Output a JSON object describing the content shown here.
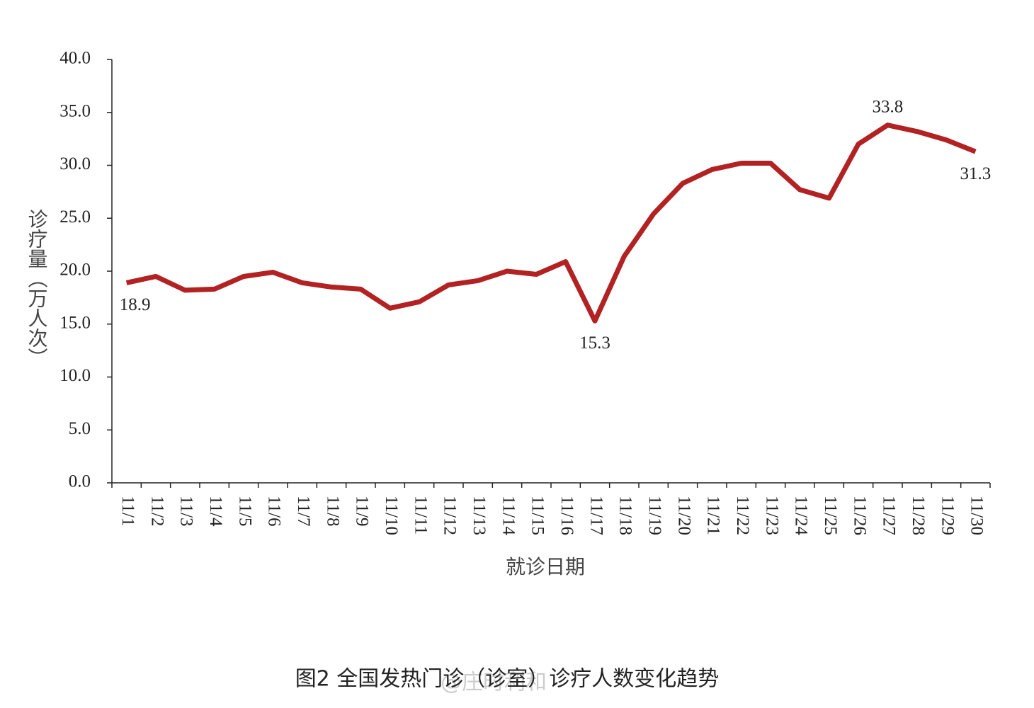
{
  "chart_data": {
    "type": "line",
    "caption": "图2  全国发热门诊（诊室）诊疗人数变化趋势",
    "watermark": "@庄时利和",
    "xlabel": "就诊日期",
    "ylabel": "诊疗量（万人次）",
    "categories": [
      "11/1",
      "11/2",
      "11/3",
      "11/4",
      "11/5",
      "11/6",
      "11/7",
      "11/8",
      "11/9",
      "11/10",
      "11/11",
      "11/12",
      "11/13",
      "11/14",
      "11/15",
      "11/16",
      "11/17",
      "11/18",
      "11/19",
      "11/20",
      "11/21",
      "11/22",
      "11/23",
      "11/24",
      "11/25",
      "11/26",
      "11/27",
      "11/28",
      "11/29",
      "11/30"
    ],
    "series": [
      {
        "name": "诊疗量",
        "color": "#b22222",
        "values": [
          18.9,
          19.5,
          18.2,
          18.3,
          19.5,
          19.9,
          18.9,
          18.5,
          18.3,
          16.5,
          17.1,
          18.7,
          19.1,
          20.0,
          19.7,
          20.9,
          15.3,
          21.4,
          25.4,
          28.3,
          29.6,
          30.2,
          30.2,
          27.7,
          26.9,
          32.0,
          33.8,
          33.2,
          32.4,
          31.3
        ],
        "value_labels": [
          "18.9",
          null,
          null,
          null,
          null,
          null,
          null,
          null,
          null,
          null,
          null,
          null,
          null,
          null,
          null,
          null,
          "15.3",
          null,
          null,
          null,
          null,
          null,
          null,
          null,
          null,
          null,
          "33.8",
          null,
          null,
          "31.3"
        ]
      }
    ],
    "ylim": [
      0,
      40
    ],
    "yticks": [
      {
        "value": 0,
        "label": "0.0"
      },
      {
        "value": 5,
        "label": "5.0"
      },
      {
        "value": 10,
        "label": "10.0"
      },
      {
        "value": 15,
        "label": "15.0"
      },
      {
        "value": 20,
        "label": "20.0"
      },
      {
        "value": 25,
        "label": "25.0"
      },
      {
        "value": 30,
        "label": "30.0"
      },
      {
        "value": 35,
        "label": "35.0"
      },
      {
        "value": 40,
        "label": "40.0"
      }
    ],
    "grid": false
  }
}
